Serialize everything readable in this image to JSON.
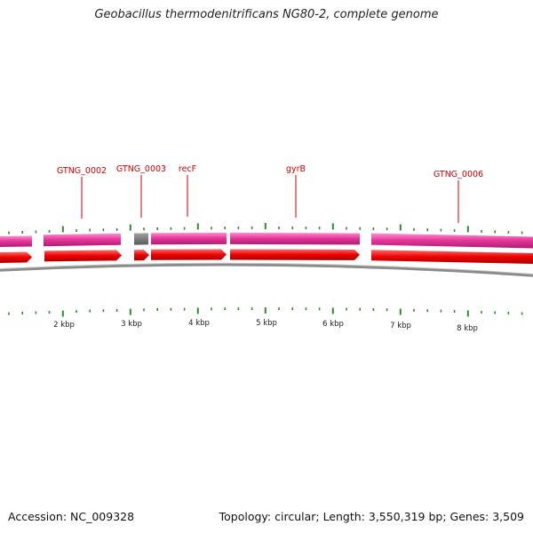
{
  "title": "Geobacillus thermodenitrificans NG80-2, complete genome",
  "colors": {
    "outer_ring": "#e6399b",
    "inner_ring": "#ee0000",
    "gap_feature": "#777777",
    "backbone": "#8a8a8a",
    "tick": "#2e8b2e",
    "label_line": "#cc0000",
    "label_text": "#cc0000"
  },
  "genes": [
    {
      "name": "GTNG_0002"
    },
    {
      "name": "GTNG_0003"
    },
    {
      "name": "recF"
    },
    {
      "name": "gyrB"
    },
    {
      "name": "GTNG_0006"
    }
  ],
  "scale_labels": [
    "2 kbp",
    "3 kbp",
    "4 kbp",
    "5 kbp",
    "6 kbp",
    "7 kbp",
    "8 kbp"
  ],
  "footer": {
    "accession": "Accession: NC_009328",
    "summary": "Topology: circular; Length: 3,550,319 bp; Genes: 3,509"
  }
}
